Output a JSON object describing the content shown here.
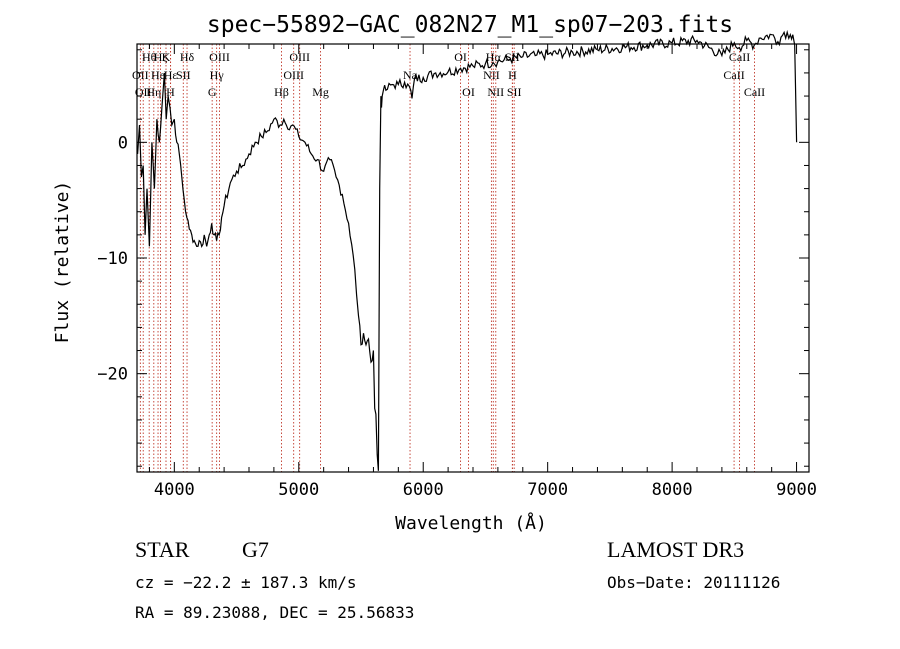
{
  "chart_data": {
    "type": "line",
    "title": "spec−55892−GAC_082N27_M1_sp07−203.fits",
    "xlabel": "Wavelength (Å)",
    "ylabel": "Flux (relative)",
    "xlim": [
      3700,
      9100
    ],
    "ylim": [
      -28.5,
      8.5
    ],
    "x_ticks": [
      4000,
      5000,
      6000,
      7000,
      8000,
      9000
    ],
    "y_ticks": [
      0,
      -10,
      -20
    ],
    "x_tick_labels": [
      "4000",
      "5000",
      "6000",
      "7000",
      "8000",
      "9000"
    ],
    "y_tick_labels": [
      "0",
      "−10",
      "−20"
    ],
    "series": [
      {
        "name": "spectrum",
        "x": [
          3705,
          3720,
          3735,
          3750,
          3765,
          3780,
          3800,
          3820,
          3840,
          3860,
          3880,
          3900,
          3920,
          3935,
          3950,
          3965,
          3980,
          4000,
          4020,
          4040,
          4060,
          4080,
          4100,
          4120,
          4140,
          4160,
          4180,
          4200,
          4220,
          4240,
          4260,
          4280,
          4300,
          4320,
          4340,
          4360,
          4380,
          4400,
          4450,
          4500,
          4550,
          4600,
          4650,
          4700,
          4750,
          4800,
          4850,
          4880,
          4900,
          4950,
          5000,
          5050,
          5100,
          5150,
          5200,
          5250,
          5300,
          5350,
          5400,
          5450,
          5480,
          5500,
          5520,
          5540,
          5560,
          5580,
          5600,
          5610,
          5620,
          5630,
          5640,
          5650,
          5660,
          5665,
          5670,
          5680,
          5700,
          5750,
          5800,
          5850,
          5900,
          5910,
          5930,
          6000,
          6100,
          6200,
          6300,
          6400,
          6500,
          6560,
          6600,
          6700,
          6800,
          6900,
          7000,
          7200,
          7400,
          7600,
          7800,
          8000,
          8200,
          8400,
          8500,
          8540,
          8600,
          8660,
          8700,
          8800,
          8850,
          8900,
          8950,
          8970,
          8985,
          9000
        ],
        "values": [
          -1,
          1.5,
          -3,
          -2,
          -8,
          -4,
          -9,
          0,
          -4,
          2,
          0,
          3,
          6,
          2,
          4,
          3,
          1.5,
          2,
          0,
          -1,
          -3,
          -5,
          -6.5,
          -7.5,
          -8,
          -8.5,
          -9,
          -8.5,
          -9,
          -8,
          -9,
          -8,
          -7,
          -8,
          -8.5,
          -8,
          -6.5,
          -5.5,
          -3.5,
          -2.5,
          -2,
          -1,
          0,
          0.5,
          1,
          2,
          1.5,
          2,
          1.5,
          1.5,
          0.5,
          0,
          -1,
          -1.5,
          -2.5,
          -1.5,
          -3,
          -4.5,
          -7,
          -11,
          -15,
          -17.5,
          -16.5,
          -17.5,
          -17,
          -19,
          -18,
          -23,
          -23.5,
          -27,
          -28.4,
          -4,
          4,
          3,
          4,
          4.5,
          4.5,
          5,
          5,
          5.2,
          4.5,
          3.8,
          5.5,
          5.6,
          6,
          6.1,
          6.4,
          6.6,
          6.8,
          6.9,
          7,
          7.2,
          7.4,
          7.5,
          7.6,
          7.8,
          8,
          8.2,
          8.4,
          8.6,
          8.8,
          7.5,
          8.6,
          8.2,
          8.8,
          8.4,
          9,
          9.3,
          8.7,
          9.5,
          9.3,
          9.3,
          8.4,
          0
        ]
      }
    ],
    "line_markers": [
      {
        "wl": 3727,
        "label": "OII",
        "row": 2
      },
      {
        "wl": 3750,
        "label": "OII",
        "row": 3
      },
      {
        "wl": 3798,
        "label": "Hθ",
        "row": 1
      },
      {
        "wl": 3835,
        "label": "Hη",
        "row": 3
      },
      {
        "wl": 3869,
        "label": "He",
        "row": 2
      },
      {
        "wl": 3889,
        "label": "Hζ",
        "row": 1
      },
      {
        "wl": 3933,
        "label": "K",
        "row": 1
      },
      {
        "wl": 3969,
        "label": "H",
        "row": 3
      },
      {
        "wl": 3970,
        "label": "Hε",
        "row": 2
      },
      {
        "wl": 4072,
        "label": "SII",
        "row": 2
      },
      {
        "wl": 4102,
        "label": "Hδ",
        "row": 1
      },
      {
        "wl": 4304,
        "label": "G",
        "row": 3
      },
      {
        "wl": 4340,
        "label": "Hγ",
        "row": 2
      },
      {
        "wl": 4363,
        "label": "OIII",
        "row": 1
      },
      {
        "wl": 4861,
        "label": "Hβ",
        "row": 3
      },
      {
        "wl": 4959,
        "label": "OIII",
        "row": 2
      },
      {
        "wl": 5007,
        "label": "OIII",
        "row": 1
      },
      {
        "wl": 5175,
        "label": "Mg",
        "row": 3
      },
      {
        "wl": 5894,
        "label": "Na",
        "row": 2
      },
      {
        "wl": 6300,
        "label": "OI",
        "row": 1
      },
      {
        "wl": 6364,
        "label": "OI",
        "row": 3
      },
      {
        "wl": 6548,
        "label": "NII",
        "row": 2
      },
      {
        "wl": 6563,
        "label": "Hα",
        "row": 1
      },
      {
        "wl": 6583,
        "label": "NII",
        "row": 3
      },
      {
        "wl": 6716,
        "label": "SII",
        "row": 1
      },
      {
        "wl": 6731,
        "label": "SII",
        "row": 3
      },
      {
        "wl": 6717,
        "label": "H",
        "row": 2
      },
      {
        "wl": 8498,
        "label": "CaII",
        "row": 2
      },
      {
        "wl": 8542,
        "label": "CaII",
        "row": 1
      },
      {
        "wl": 8662,
        "label": "CaII",
        "row": 3
      }
    ]
  },
  "info": {
    "object_class": "STAR",
    "subclass": "G7",
    "survey": "LAMOST DR3",
    "cz": "cz = −22.2 ± 187.3 km/s",
    "obs_date": "Obs−Date: 20111126",
    "coords": "RA =  89.23088, DEC =  25.56833"
  }
}
